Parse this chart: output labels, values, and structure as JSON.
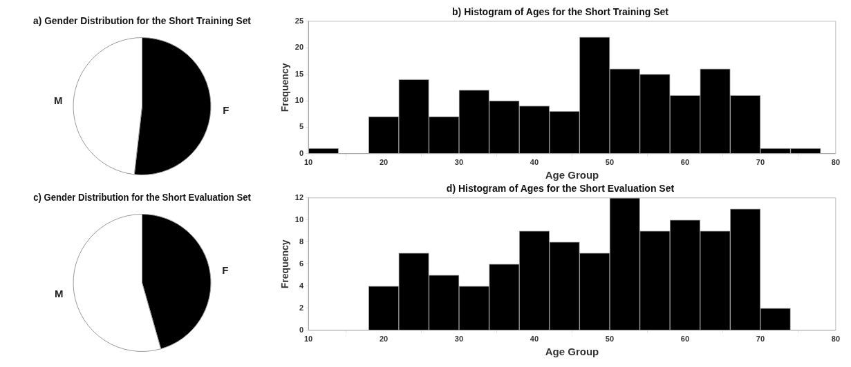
{
  "chart_data": [
    {
      "type": "pie",
      "title": "a) Gender Distribution for the Short Training Set",
      "categories": [
        "F",
        "M"
      ],
      "values": [
        51.8,
        48.2
      ],
      "colors": [
        "#000000",
        "#ffffff"
      ]
    },
    {
      "type": "histogram",
      "title": "b) Histogram of Ages for the Short Training Set",
      "xlabel": "Age Group",
      "ylabel": "Frequency",
      "bins": [
        10,
        14,
        18,
        22,
        26,
        30,
        34,
        38,
        42,
        46,
        50,
        54,
        58,
        62,
        66,
        70,
        74,
        78
      ],
      "values": [
        1,
        0,
        7,
        14,
        7,
        12,
        10,
        9,
        8,
        22,
        16,
        15,
        11,
        16,
        11,
        1,
        1
      ],
      "color": "#000000",
      "xlim": [
        10,
        80
      ],
      "xticks": [
        10,
        20,
        30,
        40,
        50,
        60,
        70,
        80
      ],
      "ylim": [
        0,
        25
      ],
      "yticks": [
        0,
        5,
        10,
        15,
        20,
        25
      ]
    },
    {
      "type": "pie",
      "title": "c) Gender Distribution for the Short Evaluation Set",
      "categories": [
        "F",
        "M"
      ],
      "values": [
        45.6,
        54.4
      ],
      "colors": [
        "#000000",
        "#ffffff"
      ]
    },
    {
      "type": "histogram",
      "title": "d) Histogram of Ages for the Short Evaluation Set",
      "xlabel": "Age Group",
      "ylabel": "Frequency",
      "bins": [
        18,
        22,
        26,
        30,
        34,
        38,
        42,
        46,
        50,
        54,
        58,
        62,
        66,
        70,
        74
      ],
      "values": [
        4,
        7,
        5,
        4,
        6,
        9,
        8,
        7,
        12,
        9,
        10,
        9,
        11,
        2
      ],
      "color": "#000000",
      "xlim": [
        10,
        80
      ],
      "xticks": [
        10,
        20,
        30,
        40,
        50,
        60,
        70,
        80
      ],
      "ylim": [
        0,
        12
      ],
      "yticks": [
        0,
        2,
        4,
        6,
        8,
        10,
        12
      ]
    }
  ]
}
